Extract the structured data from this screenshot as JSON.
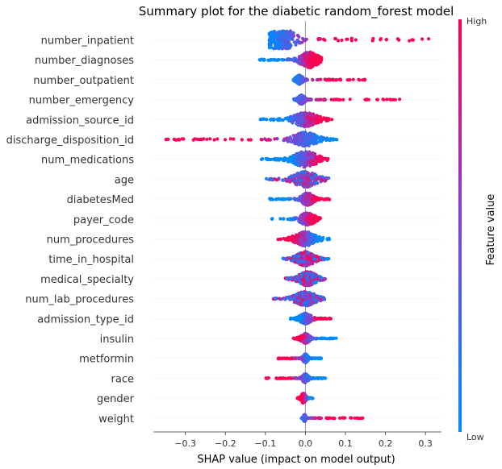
{
  "chart_data": {
    "type": "scatter",
    "subtype": "shap-beeswarm",
    "title": "Summary plot for the diabetic random_forest model",
    "xlabel": "SHAP value (impact on model output)",
    "xticks": [
      "−0.3",
      "−0.2",
      "−0.1",
      "0.0",
      "0.1",
      "0.2",
      "0.3"
    ],
    "xtick_values": [
      -0.3,
      -0.2,
      -0.1,
      0.0,
      0.1,
      0.2,
      0.3
    ],
    "xlim": [
      -0.38,
      0.34
    ],
    "colorbar": {
      "label": "Feature value",
      "high": "High",
      "low": "Low",
      "low_color": "#008bfb",
      "high_color": "#ff0052"
    },
    "features": [
      {
        "name": "number_inpatient",
        "min": -0.09,
        "max": 0.31,
        "low_side": "left",
        "peak": -0.06,
        "width": 0.035,
        "spread": 0.04,
        "mid": -0.015
      },
      {
        "name": "number_diagnoses",
        "min": -0.12,
        "max": 0.04,
        "low_side": "left",
        "peak": 0.01,
        "width": 0.03,
        "spread": 0.018,
        "mid": -0.02
      },
      {
        "name": "number_outpatient",
        "min": -0.03,
        "max": 0.15,
        "low_side": "left",
        "peak": -0.015,
        "width": 0.012,
        "spread": 0.01,
        "mid": 0.005
      },
      {
        "name": "number_emergency",
        "min": -0.03,
        "max": 0.24,
        "low_side": "left",
        "peak": -0.01,
        "width": 0.012,
        "spread": 0.01,
        "mid": 0.005
      },
      {
        "name": "admission_source_id",
        "min": -0.12,
        "max": 0.07,
        "low_side": "left",
        "peak": 0.0,
        "width": 0.04,
        "spread": 0.016,
        "mid": -0.01
      },
      {
        "name": "discharge_disposition_id",
        "min": -0.35,
        "max": 0.08,
        "low_side": "right",
        "peak": 0.0,
        "width": 0.04,
        "spread": 0.016,
        "mid": -0.04
      },
      {
        "name": "num_medications",
        "min": -0.11,
        "max": 0.06,
        "low_side": "left",
        "peak": 0.0,
        "width": 0.04,
        "spread": 0.018,
        "mid": 0.0
      },
      {
        "name": "age",
        "min": -0.1,
        "max": 0.06,
        "low_side": "mixed",
        "peak": 0.0,
        "width": 0.04,
        "spread": 0.018,
        "mid": 0.0
      },
      {
        "name": "diabetesMed",
        "min": -0.09,
        "max": 0.06,
        "low_side": "left",
        "peak": 0.005,
        "width": 0.02,
        "spread": 0.014,
        "mid": -0.01
      },
      {
        "name": "payer_code",
        "min": -0.1,
        "max": 0.04,
        "low_side": "left",
        "peak": 0.005,
        "width": 0.025,
        "spread": 0.014,
        "mid": -0.01
      },
      {
        "name": "num_procedures",
        "min": -0.07,
        "max": 0.06,
        "low_side": "right",
        "peak": 0.0,
        "width": 0.035,
        "spread": 0.016,
        "mid": 0.0
      },
      {
        "name": "time_in_hospital",
        "min": -0.06,
        "max": 0.06,
        "low_side": "mixed",
        "peak": 0.0,
        "width": 0.03,
        "spread": 0.016,
        "mid": 0.0
      },
      {
        "name": "medical_specialty",
        "min": -0.05,
        "max": 0.05,
        "low_side": "mixed",
        "peak": 0.005,
        "width": 0.03,
        "spread": 0.016,
        "mid": 0.0
      },
      {
        "name": "num_lab_procedures",
        "min": -0.08,
        "max": 0.05,
        "low_side": "mixed",
        "peak": 0.0,
        "width": 0.035,
        "spread": 0.016,
        "mid": 0.0
      },
      {
        "name": "admission_type_id",
        "min": -0.04,
        "max": 0.07,
        "low_side": "left",
        "peak": 0.0,
        "width": 0.02,
        "spread": 0.012,
        "mid": 0.01
      },
      {
        "name": "insulin",
        "min": -0.03,
        "max": 0.08,
        "low_side": "right",
        "peak": 0.0,
        "width": 0.015,
        "spread": 0.011,
        "mid": 0.01
      },
      {
        "name": "metformin",
        "min": -0.07,
        "max": 0.04,
        "low_side": "right",
        "peak": 0.0,
        "width": 0.008,
        "spread": 0.01,
        "mid": -0.01
      },
      {
        "name": "race",
        "min": -0.1,
        "max": 0.05,
        "low_side": "right",
        "peak": 0.0,
        "width": 0.01,
        "spread": 0.01,
        "mid": -0.01
      },
      {
        "name": "gender",
        "min": -0.02,
        "max": 0.02,
        "low_side": "right",
        "peak": -0.005,
        "width": 0.008,
        "spread": 0.011,
        "mid": 0.0
      },
      {
        "name": "weight",
        "min": -0.01,
        "max": 0.15,
        "low_side": "left",
        "peak": -0.002,
        "width": 0.004,
        "spread": 0.008,
        "mid": 0.01
      }
    ]
  }
}
